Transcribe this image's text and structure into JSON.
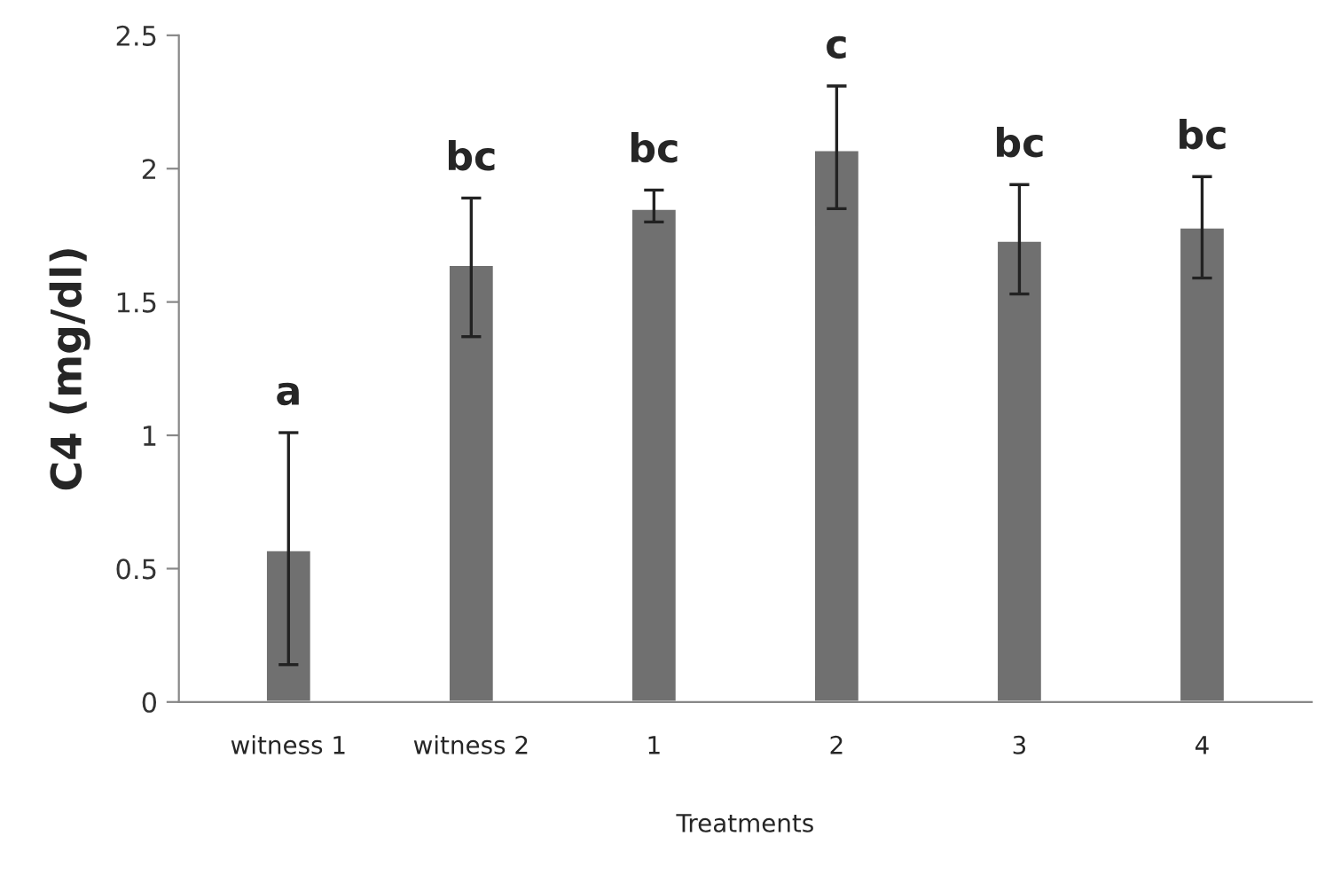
{
  "chart_data": {
    "type": "bar",
    "xlabel": "Treatments",
    "ylabel": "C4 (mg/dl)",
    "categories": [
      "witness 1",
      "witness 2",
      "1",
      "2",
      "3",
      "4"
    ],
    "values": [
      0.57,
      1.64,
      1.85,
      2.07,
      1.73,
      1.78
    ],
    "errors": [
      [
        0.14,
        1.01
      ],
      [
        1.37,
        1.89
      ],
      [
        1.8,
        1.92
      ],
      [
        1.85,
        2.31
      ],
      [
        1.53,
        1.94
      ],
      [
        1.59,
        1.97
      ]
    ],
    "color": "#707070",
    "ylim": [
      0,
      2.5
    ],
    "yticks": [
      0,
      0.5,
      1,
      1.5,
      2,
      2.5
    ],
    "grid": false,
    "annotations": [
      {
        "text": "a",
        "x": "witness 1",
        "y": 1.01
      },
      {
        "text": "bc",
        "x": "witness 2",
        "y": 1.89
      },
      {
        "text": "bc",
        "x": "1",
        "y": 1.92
      },
      {
        "text": "c",
        "x": "2",
        "y": 2.31
      },
      {
        "text": "bc",
        "x": "3",
        "y": 1.94
      },
      {
        "text": "bc",
        "x": "4",
        "y": 1.97
      }
    ]
  }
}
